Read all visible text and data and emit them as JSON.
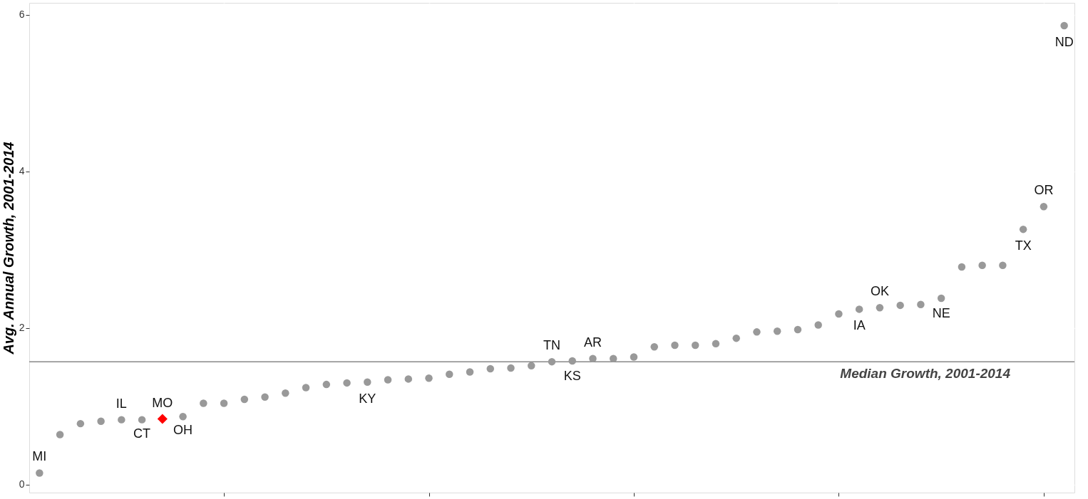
{
  "chart_data": {
    "type": "scatter",
    "ylabel": "Avg. Annual Growth, 2001-2014",
    "categories": [
      null,
      null,
      null,
      null,
      null,
      null,
      null,
      null,
      null,
      null,
      null,
      null,
      null,
      null,
      null,
      null,
      null,
      null,
      null,
      null,
      null,
      null,
      null,
      null,
      null,
      null,
      null,
      null,
      null,
      null,
      null,
      null,
      null,
      null,
      null,
      null,
      null,
      null,
      null,
      null,
      null,
      null,
      null,
      null,
      null,
      null,
      null,
      null,
      null,
      null,
      null
    ],
    "ylim": [
      -0.1,
      6.15
    ],
    "yticks": [
      0,
      2,
      4,
      6
    ],
    "grid": true,
    "series": [
      {
        "color": "#999999",
        "marker": "circle",
        "values": [
          0.15,
          0.64,
          0.78,
          0.81,
          0.83,
          0.83,
          null,
          0.87,
          1.04,
          1.04,
          1.09,
          1.12,
          1.17,
          1.24,
          1.28,
          1.3,
          1.31,
          1.34,
          1.35,
          1.36,
          1.41,
          1.44,
          1.48,
          1.49,
          1.52,
          1.57,
          1.58,
          1.61,
          1.61,
          1.63,
          1.76,
          1.78,
          1.78,
          1.8,
          1.87,
          1.95,
          1.96,
          1.98,
          2.04,
          2.18,
          2.24,
          2.26,
          2.29,
          2.3,
          2.38,
          2.78,
          2.8,
          2.8,
          3.26,
          3.55,
          5.86
        ],
        "value_labels": [
          "MI",
          null,
          null,
          null,
          "IL",
          "CT",
          null,
          "OH",
          null,
          null,
          null,
          null,
          null,
          null,
          null,
          null,
          "KY",
          null,
          null,
          null,
          null,
          null,
          null,
          null,
          null,
          "TN",
          "KS",
          "AR",
          null,
          null,
          null,
          null,
          null,
          null,
          null,
          null,
          null,
          null,
          null,
          null,
          "IA",
          "OK",
          null,
          null,
          "NE",
          null,
          null,
          null,
          "TX",
          "OR",
          "ND"
        ]
      },
      {
        "color": "#ff0000",
        "marker": "diamond",
        "values": [
          null,
          null,
          null,
          null,
          null,
          null,
          0.84,
          null,
          null,
          null,
          null,
          null,
          null,
          null,
          null,
          null,
          null,
          null,
          null,
          null,
          null,
          null,
          null,
          null,
          null,
          null,
          null,
          null,
          null,
          null,
          null,
          null,
          null,
          null,
          null,
          null,
          null,
          null,
          null,
          null,
          null,
          null,
          null,
          null,
          null,
          null,
          null,
          null,
          null,
          null,
          null
        ],
        "value_labels": [
          null,
          null,
          null,
          null,
          null,
          null,
          "MO",
          null,
          null,
          null,
          null,
          null,
          null,
          null,
          null,
          null,
          null,
          null,
          null,
          null,
          null,
          null,
          null,
          null,
          null,
          null,
          null,
          null,
          null,
          null,
          null,
          null,
          null,
          null,
          null,
          null,
          null,
          null,
          null,
          null,
          null,
          null,
          null,
          null,
          null,
          null,
          null,
          null,
          null,
          null,
          null
        ]
      }
    ],
    "ref_lines": [
      {
        "axis": "y",
        "value": 1.57,
        "label": "Median Growth, 2001-2014",
        "color": "#888888"
      }
    ]
  }
}
